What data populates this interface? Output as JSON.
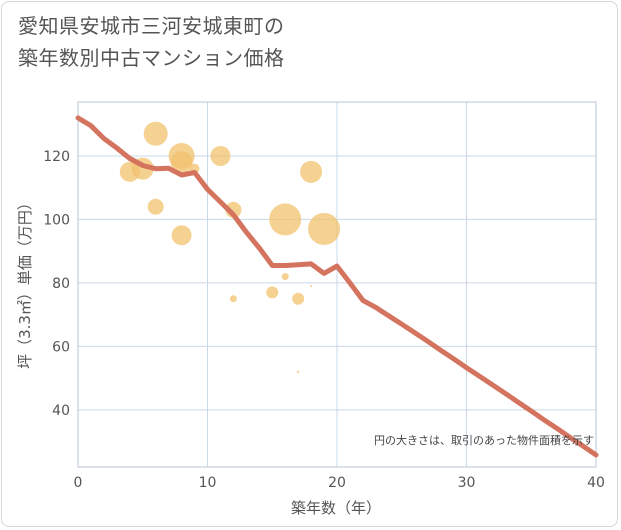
{
  "chart_data": {
    "type": "scatter",
    "title_lines": [
      "愛知県安城市三河安城東町の",
      "築年数別中古マンション価格"
    ],
    "xlabel": "築年数（年）",
    "ylabel": "坪（3.3㎡）単価（万円）",
    "note": "円の大きさは、取引のあった物件面積を示す",
    "xlim": [
      0,
      40
    ],
    "ylim": [
      22,
      137
    ],
    "xticks": [
      0,
      10,
      20,
      30,
      40
    ],
    "yticks": [
      40,
      60,
      80,
      100,
      120
    ],
    "colors": {
      "bubble": "#f2c16e",
      "line": "#d4735e",
      "grid": "#c9d9e8",
      "plot_border": "#b9c5d3"
    },
    "bubbles": [
      {
        "x": 4,
        "y": 115,
        "size": 10
      },
      {
        "x": 5,
        "y": 116,
        "size": 11
      },
      {
        "x": 6,
        "y": 127,
        "size": 12
      },
      {
        "x": 6,
        "y": 104,
        "size": 8
      },
      {
        "x": 8,
        "y": 120,
        "size": 13
      },
      {
        "x": 8,
        "y": 118,
        "size": 11
      },
      {
        "x": 8,
        "y": 95,
        "size": 10
      },
      {
        "x": 9,
        "y": 116,
        "size": 5
      },
      {
        "x": 11,
        "y": 120,
        "size": 10
      },
      {
        "x": 12,
        "y": 103,
        "size": 8
      },
      {
        "x": 12,
        "y": 75,
        "size": 3.5
      },
      {
        "x": 15,
        "y": 77,
        "size": 6
      },
      {
        "x": 16,
        "y": 100,
        "size": 16
      },
      {
        "x": 16,
        "y": 82,
        "size": 3.5
      },
      {
        "x": 17,
        "y": 75,
        "size": 6
      },
      {
        "x": 17,
        "y": 52,
        "size": 1.2
      },
      {
        "x": 18,
        "y": 115,
        "size": 11
      },
      {
        "x": 18,
        "y": 79,
        "size": 1
      },
      {
        "x": 19,
        "y": 97,
        "size": 16
      }
    ],
    "trend_line": {
      "x": [
        0,
        1,
        2,
        3,
        4,
        5,
        6,
        7,
        8,
        9,
        10,
        11,
        12,
        13,
        14,
        15,
        16,
        17,
        18,
        19,
        20,
        21,
        22,
        23,
        24,
        25,
        26,
        27,
        28,
        29,
        30,
        31,
        32,
        33,
        34,
        35,
        36,
        37,
        38,
        39,
        40
      ],
      "y": [
        132,
        129.5,
        125.5,
        122.5,
        119.2,
        117,
        116,
        116.1,
        114,
        114.8,
        109.5,
        105.5,
        101.5,
        96,
        91,
        85.5,
        85.5,
        85.7,
        86,
        83,
        85.3,
        80,
        74.5,
        72.3,
        69.6,
        67,
        64.3,
        61.6,
        58.8,
        56.1,
        53.3,
        50.6,
        47.9,
        45.2,
        42.4,
        39.6,
        36.8,
        34.1,
        31.3,
        28.6,
        25.8
      ]
    }
  }
}
